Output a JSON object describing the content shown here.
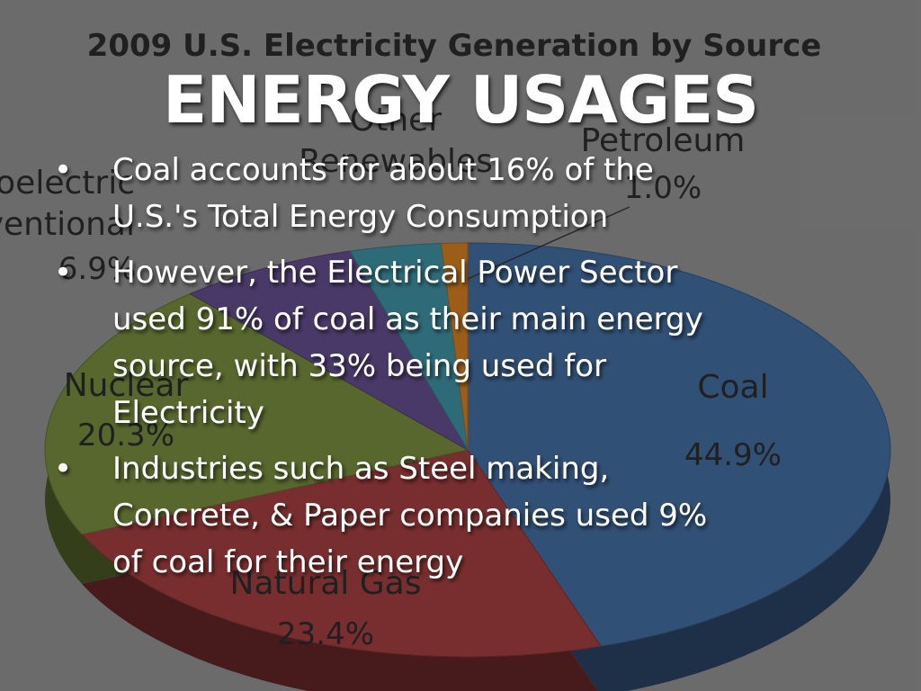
{
  "slide": {
    "title": "ENERGY USAGES",
    "bullets": [
      [
        "Coal accounts for about 16% of the",
        "U.S.'s Total Energy Consumption"
      ],
      [
        "However, the Electrical Power Sector",
        "used 91% of coal as their main energy",
        "source, with 33% being used for",
        "Electricity"
      ],
      [
        "Industries such as Steel making,",
        "Concrete, & Paper companies used 9%",
        "of coal for their energy"
      ]
    ],
    "bullet_symbol": "•"
  },
  "background_chart": {
    "type": "pie",
    "title": "2009 U.S. Electricity Generation by Source",
    "slices": [
      {
        "label_lines": [
          "Coal"
        ],
        "value": 44.9,
        "value_label": "44.9%",
        "color": "#3f6797"
      },
      {
        "label_lines": [
          "Natural Gas"
        ],
        "value": 23.4,
        "value_label": "23.4%",
        "color": "#9a3b3b"
      },
      {
        "label_lines": [
          "Nuclear"
        ],
        "value": 20.3,
        "value_label": "20.3%",
        "color": "#71853a"
      },
      {
        "label_lines": [
          "Hydroelectric",
          "Conventional"
        ],
        "value": 6.9,
        "value_label": "6.9%",
        "color": "#5e4a86"
      },
      {
        "label_lines": [
          "Other",
          "Renewables"
        ],
        "value": 3.5,
        "color": "#3b8a9a"
      },
      {
        "label_lines": [
          "Petroleum"
        ],
        "value": 1.0,
        "value_label": "1.0%",
        "color": "#c7781f"
      }
    ]
  }
}
